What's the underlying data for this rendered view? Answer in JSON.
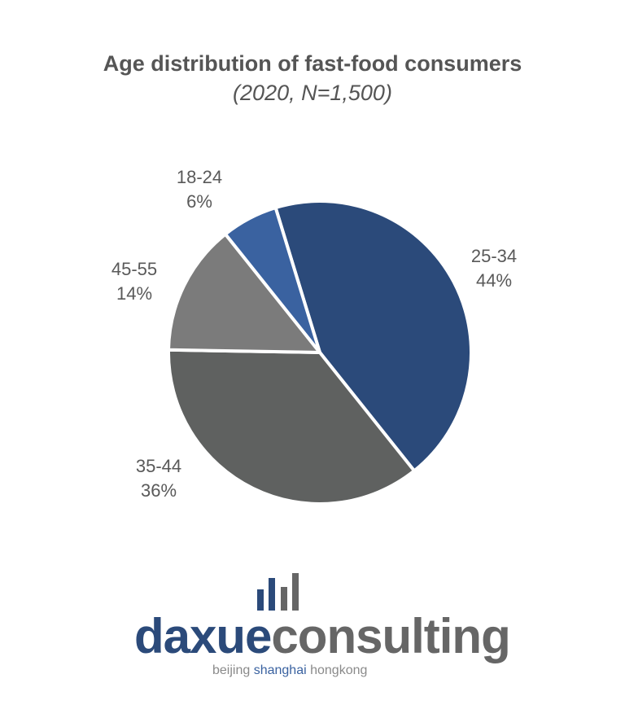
{
  "chart_data": {
    "type": "pie",
    "title": "Age distribution of fast-food consumers",
    "subtitle": "(2020, N=1,500)",
    "start_angle_deg": -17,
    "direction": "clockwise",
    "slices": [
      {
        "label": "25-34",
        "value": 44,
        "value_label": "44%",
        "color": "#2b4a7a"
      },
      {
        "label": "35-44",
        "value": 36,
        "value_label": "36%",
        "color": "#5f6160"
      },
      {
        "label": "45-55",
        "value": 14,
        "value_label": "14%",
        "color": "#7b7b7b"
      },
      {
        "label": "18-24",
        "value": 6,
        "value_label": "6%",
        "color": "#3a62a0"
      }
    ]
  },
  "logo": {
    "part1": "daxue",
    "part2": "consulting",
    "tag1": "beijing ",
    "tag2": "shanghai",
    "tag3": " hongkong",
    "blue": "#2b4a7a",
    "gray": "#666666"
  }
}
